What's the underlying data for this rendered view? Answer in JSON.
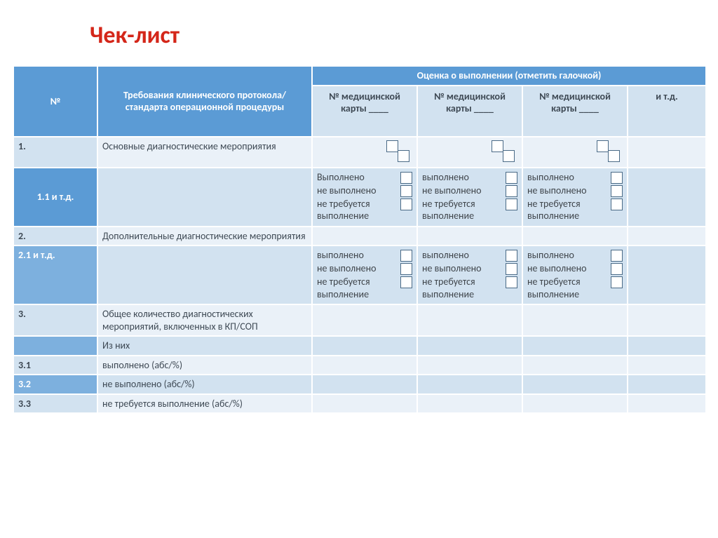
{
  "title": "Чек-лист",
  "header": {
    "num": "№",
    "req": "Требования клинического протокола/стандарта операционной процедуры",
    "eval": "Оценка о выполнении (отметить галочкой)",
    "card": "№ медицинской карты ____",
    "etc": "и т.д."
  },
  "labels": {
    "done": "Выполнено",
    "done_lc": "выполнено",
    "not_done": "не выполнено",
    "not_required": "не требуется выполнение"
  },
  "rows": {
    "r1_num": "1.",
    "r1_req": "Основные диагностические мероприятия",
    "r11_num": "1.1 и т.д.",
    "r2_num": "2.",
    "r2_req": "Дополнительные диагностические мероприятия",
    "r21_num": "2.1 и т.д.",
    "r3_num": "3.",
    "r3_req": "Общее количество диагностических мероприятий, включенных в КП/СОП",
    "r3a_req": "Из них",
    "r31_num": "3.1",
    "r31_req": "выполнено (абс/%)",
    "r32_num": "3.2",
    "r32_req": "не выполнено (абс/%)",
    "r33_num": "3.3",
    "r33_req": "не требуется выполнение (абс/%)"
  },
  "style": {
    "title_color": "#d42619",
    "header_bg": "#5b9bd5",
    "numcol_dark": "#7db0de",
    "band_dark": "#d2e2f0",
    "band_light": "#eaf1f8",
    "text_color": "#40464c",
    "border_color": "#ffffff",
    "checkbox_border": "#4a6a86",
    "title_fontsize": 34,
    "body_fontsize": 14
  }
}
